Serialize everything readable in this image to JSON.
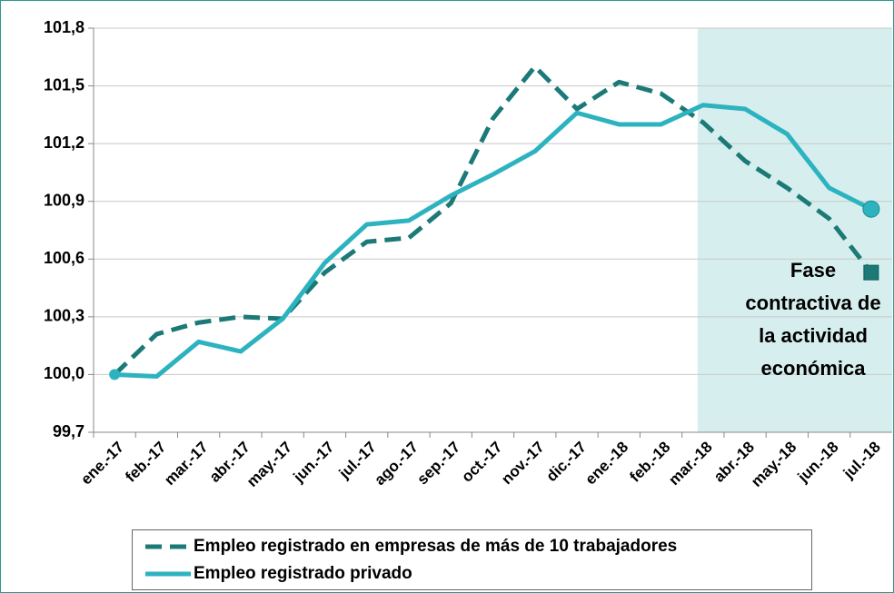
{
  "chart_data": {
    "type": "line",
    "categories": [
      "ene.-17",
      "feb.-17",
      "mar.-17",
      "abr.-17",
      "may.-17",
      "jun.-17",
      "jul.-17",
      "ago.-17",
      "sep.-17",
      "oct.-17",
      "nov.-17",
      "dic.-17",
      "ene.-18",
      "feb.-18",
      "mar.-18",
      "abr.-18",
      "may.-18",
      "jun.-18",
      "jul.-18"
    ],
    "series": [
      {
        "name": "Empleo registrado en empresas de más de 10 trabajadores",
        "color": "#1b7a77",
        "dashed": true,
        "values": [
          100.0,
          100.21,
          100.27,
          100.3,
          100.29,
          100.53,
          100.69,
          100.71,
          100.89,
          101.33,
          101.6,
          101.38,
          101.52,
          101.46,
          101.31,
          101.11,
          100.97,
          100.81,
          100.53
        ]
      },
      {
        "name": "Empleo registrado privado",
        "color": "#2db3bf",
        "dashed": false,
        "values": [
          100.0,
          99.99,
          100.17,
          100.12,
          100.29,
          100.58,
          100.78,
          100.8,
          100.93,
          101.04,
          101.16,
          101.36,
          101.3,
          101.3,
          101.4,
          101.38,
          101.25,
          100.97,
          100.86
        ]
      }
    ],
    "ylim": [
      99.7,
      101.8
    ],
    "yticks": [
      {
        "value": 99.7,
        "label": "99,7"
      },
      {
        "value": 100.0,
        "label": "100,0"
      },
      {
        "value": 100.3,
        "label": "100,3"
      },
      {
        "value": 100.6,
        "label": "100,6"
      },
      {
        "value": 100.9,
        "label": "100,9"
      },
      {
        "value": 101.2,
        "label": "101,2"
      },
      {
        "value": 101.5,
        "label": "101,5"
      },
      {
        "value": 101.8,
        "label": "101,8"
      }
    ],
    "grid": true,
    "highlight": {
      "from": "mar.-18",
      "label": "Fase contractiva de la actividad económica",
      "color": "#d6efee"
    },
    "legend": "bottom"
  }
}
